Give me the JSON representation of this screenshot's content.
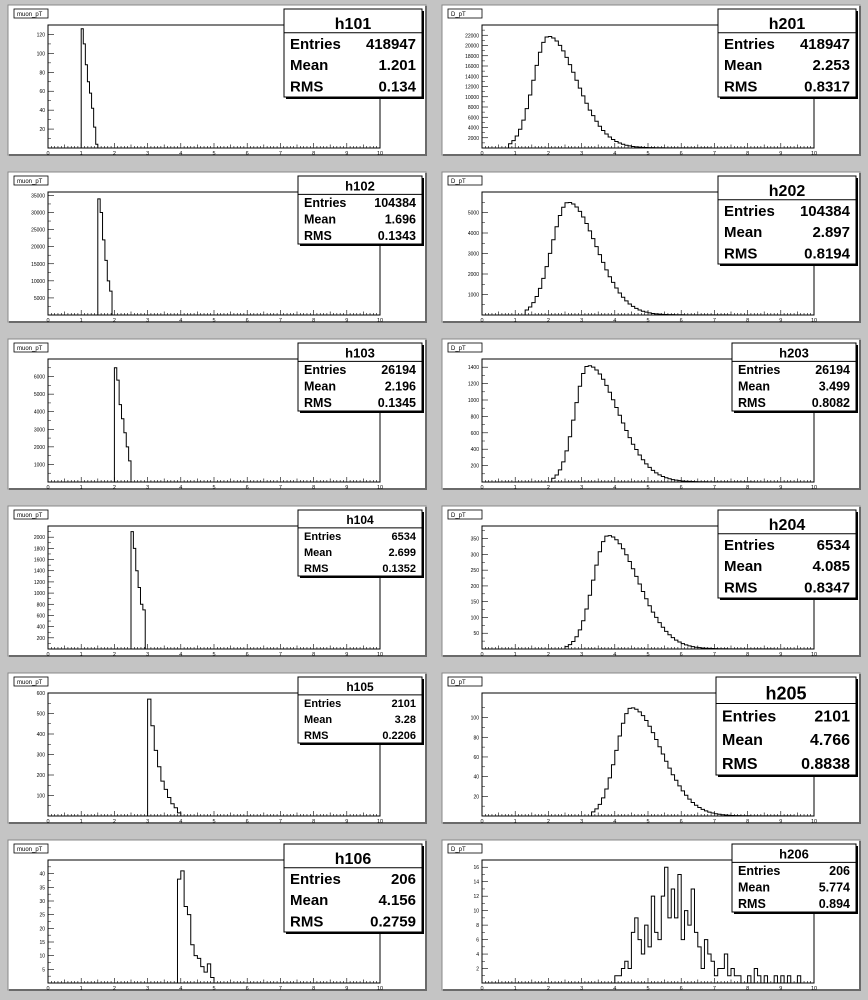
{
  "charts": [
    {
      "id": "h101",
      "label": "muon_pT",
      "col": 0,
      "row": 0,
      "ymax": 130,
      "yticks": [
        20,
        40,
        60,
        80,
        100,
        120
      ],
      "bins": [
        [
          1.2,
          1.0,
          1.5
        ],
        [
          126,
          110,
          88,
          70,
          58,
          42,
          22,
          4
        ]
      ],
      "stats": {
        "title": "h101",
        "entries": "418947",
        "mean": "1.201",
        "rms": "0.134"
      },
      "size": "L"
    },
    {
      "id": "h102",
      "label": "muon_pT",
      "col": 0,
      "row": 1,
      "ymax": 36000,
      "yticks": [
        5000,
        10000,
        15000,
        20000,
        25000,
        30000,
        35000
      ],
      "bins": [
        [
          1.7,
          1.5,
          2.0
        ],
        [
          34000,
          30000,
          22000,
          16000,
          10000,
          7000,
          0
        ]
      ],
      "stats": {
        "title": "h102",
        "entries": "104384",
        "mean": "1.696",
        "rms": "0.1343"
      },
      "size": "M"
    },
    {
      "id": "h103",
      "label": "muon_pT",
      "col": 0,
      "row": 2,
      "ymax": 7000,
      "yticks": [
        1000,
        2000,
        3000,
        4000,
        5000,
        6000
      ],
      "bins": [
        [
          2.2,
          2.0,
          2.5
        ],
        [
          6500,
          5800,
          4400,
          3600,
          2800,
          2000,
          1200
        ]
      ],
      "stats": {
        "title": "h103",
        "entries": "26194",
        "mean": "2.196",
        "rms": "0.1345"
      },
      "size": "M"
    },
    {
      "id": "h104",
      "label": "muon_pT",
      "col": 0,
      "row": 3,
      "ymax": 2200,
      "yticks": [
        200,
        400,
        600,
        800,
        1000,
        1200,
        1400,
        1600,
        1800,
        2000
      ],
      "bins": [
        [
          2.7,
          2.5,
          3.0
        ],
        [
          2100,
          1800,
          1400,
          1100,
          800,
          700,
          0
        ]
      ],
      "stats": {
        "title": "h104",
        "entries": "6534",
        "mean": "2.699",
        "rms": "0.1352"
      },
      "size": "S"
    },
    {
      "id": "h105",
      "label": "muon_pT",
      "col": 0,
      "row": 4,
      "ymax": 600,
      "yticks": [
        100,
        200,
        300,
        400,
        500,
        600
      ],
      "bins": [
        [
          3.3,
          3.0,
          4.0
        ],
        [
          570,
          440,
          320,
          240,
          170,
          130,
          90,
          60,
          40,
          15
        ]
      ],
      "stats": {
        "title": "h105",
        "entries": "2101",
        "mean": "3.28",
        "rms": "0.2206"
      },
      "size": "S"
    },
    {
      "id": "h106",
      "label": "muon_pT",
      "col": 0,
      "row": 5,
      "ymax": 45,
      "yticks": [
        5,
        10,
        15,
        20,
        25,
        30,
        35,
        40
      ],
      "bins": [
        [
          4.2,
          3.9,
          5.0
        ],
        [
          38,
          41,
          28,
          25,
          14,
          10,
          9,
          6,
          4,
          7,
          2
        ]
      ],
      "stats": {
        "title": "h106",
        "entries": "206",
        "mean": "4.156",
        "rms": "0.2759"
      },
      "size": "L"
    },
    {
      "id": "h201",
      "label": "D_pT",
      "col": 1,
      "row": 0,
      "ymax": 24000,
      "yticks": [
        2000,
        4000,
        6000,
        8000,
        10000,
        12000,
        14000,
        16000,
        18000,
        20000,
        22000
      ],
      "curve": {
        "peak": 2.0,
        "amp": 21800,
        "sl": 0.45,
        "sr": 0.85,
        "start": 0.8,
        "end": 10
      },
      "stats": {
        "title": "h201",
        "entries": "418947",
        "mean": "2.253",
        "rms": "0.8317"
      },
      "size": "L"
    },
    {
      "id": "h202",
      "label": "D_pT",
      "col": 1,
      "row": 1,
      "ymax": 6000,
      "yticks": [
        1000,
        2000,
        3000,
        4000,
        5000
      ],
      "curve": {
        "peak": 2.6,
        "amp": 5500,
        "sl": 0.5,
        "sr": 0.85,
        "start": 1.3,
        "end": 10
      },
      "stats": {
        "title": "h202",
        "entries": "104384",
        "mean": "2.897",
        "rms": "0.8194"
      },
      "size": "L"
    },
    {
      "id": "h203",
      "label": "D_pT",
      "col": 1,
      "row": 2,
      "ymax": 1500,
      "yticks": [
        200,
        400,
        600,
        800,
        1000,
        1200,
        1400
      ],
      "curve": {
        "peak": 3.2,
        "amp": 1420,
        "sl": 0.4,
        "sr": 0.9,
        "start": 2.1,
        "end": 10
      },
      "stats": {
        "title": "h203",
        "entries": "26194",
        "mean": "3.499",
        "rms": "0.8082"
      },
      "size": "M"
    },
    {
      "id": "h204",
      "label": "D_pT",
      "col": 1,
      "row": 3,
      "ymax": 390,
      "yticks": [
        50,
        100,
        150,
        200,
        250,
        300,
        350
      ],
      "curve": {
        "peak": 3.8,
        "amp": 360,
        "sl": 0.45,
        "sr": 0.9,
        "start": 2.5,
        "end": 10
      },
      "stats": {
        "title": "h204",
        "entries": "6534",
        "mean": "4.085",
        "rms": "0.8347"
      },
      "size": "L"
    },
    {
      "id": "h205",
      "label": "D_pT",
      "col": 1,
      "row": 4,
      "ymax": 125,
      "yticks": [
        20,
        40,
        60,
        80,
        100
      ],
      "curve": {
        "peak": 4.5,
        "amp": 110,
        "sl": 0.45,
        "sr": 0.9,
        "start": 3.3,
        "end": 10
      },
      "stats": {
        "title": "h205",
        "entries": "2101",
        "mean": "4.766",
        "rms": "0.8838"
      },
      "size": "XL"
    },
    {
      "id": "h206",
      "label": "D_pT",
      "col": 1,
      "row": 5,
      "ymax": 17,
      "yticks": [
        2,
        4,
        6,
        8,
        10,
        12,
        14,
        16
      ],
      "noisy": [
        0,
        0,
        0,
        0,
        0,
        0,
        0,
        0,
        0,
        0,
        0,
        0,
        0,
        0,
        0,
        0,
        0,
        0,
        0,
        0,
        0,
        0,
        0,
        0,
        0,
        0,
        0,
        0,
        0,
        0,
        0,
        0,
        0,
        0,
        0,
        0,
        0,
        0,
        0,
        0,
        1,
        1,
        2,
        3,
        2,
        7,
        9,
        6,
        4,
        8,
        5,
        12,
        7,
        6,
        12,
        16,
        9,
        13,
        9,
        15,
        6,
        10,
        8,
        13,
        7,
        5,
        2,
        6,
        4,
        3,
        1,
        2,
        2,
        4,
        1,
        2,
        1,
        1,
        0,
        0,
        1,
        0,
        2,
        1,
        0,
        1,
        0,
        0,
        1,
        0,
        1,
        0,
        1,
        0,
        0,
        1,
        0,
        0,
        0,
        0
      ],
      "stats": {
        "title": "h206",
        "entries": "206",
        "mean": "5.774",
        "rms": "0.894"
      },
      "size": "M"
    }
  ],
  "stat_labels": {
    "entries": "Entries",
    "mean": "Mean",
    "rms": "RMS"
  },
  "xticks": [
    0,
    1,
    2,
    3,
    4,
    5,
    6,
    7,
    8,
    9,
    10
  ]
}
